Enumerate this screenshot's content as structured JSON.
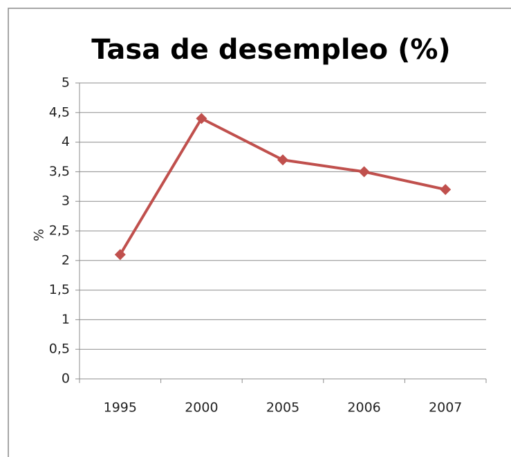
{
  "chart_data": {
    "type": "line",
    "title": "Tasa de desempleo (%)",
    "y_label": "%",
    "categories": [
      "1995",
      "2000",
      "2005",
      "2006",
      "2007"
    ],
    "values": [
      2.1,
      4.4,
      3.7,
      3.5,
      3.2
    ],
    "color": "#c0504d",
    "ylim": [
      0,
      5
    ],
    "yticks": [
      0,
      {
        "value": 0.5,
        "label": "0,5"
      },
      1,
      {
        "value": 1.5,
        "label": "1,5"
      },
      2,
      {
        "value": 2.5,
        "label": "2,5"
      },
      3,
      {
        "value": 3.5,
        "label": "3,5"
      },
      4,
      {
        "value": 4.5,
        "label": "4,5"
      },
      5
    ],
    "grid": true
  }
}
